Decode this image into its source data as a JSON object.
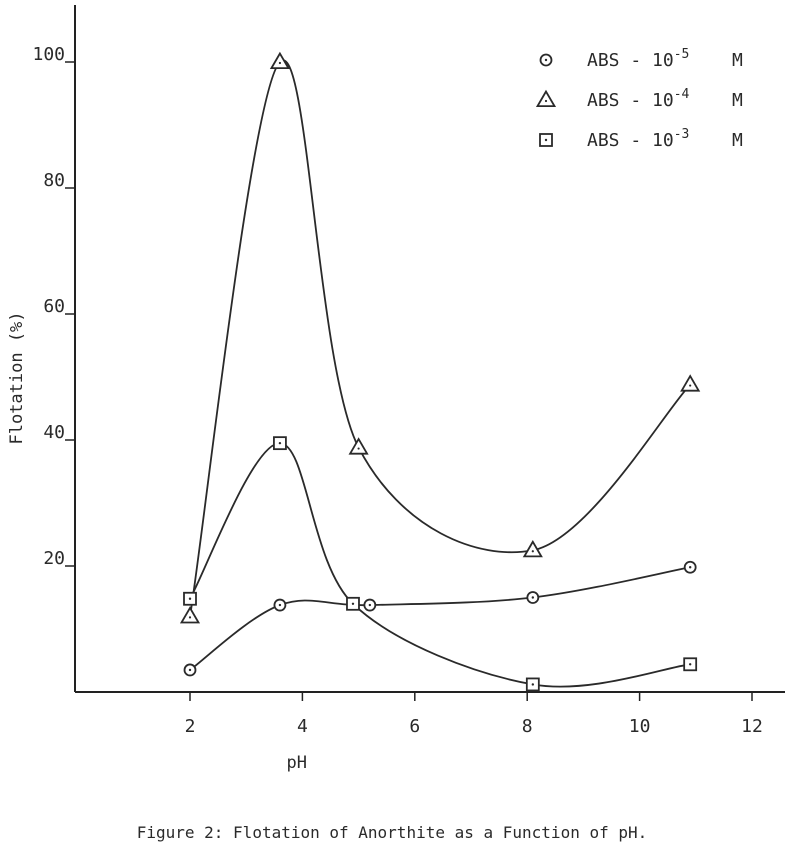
{
  "chart_data": {
    "type": "line",
    "xlabel": "pH",
    "ylabel": "Flotation (%)",
    "xlim": [
      0,
      12.5
    ],
    "ylim": [
      0,
      110
    ],
    "x_ticks": [
      2,
      4,
      6,
      8,
      10,
      12
    ],
    "y_ticks": [
      20,
      40,
      60,
      80,
      100
    ],
    "grid": false,
    "legend_position": "top-right",
    "series": [
      {
        "name": "ABS - 10⁻⁵ M",
        "legend_label": "ABS - 10",
        "legend_exp": "-5",
        "legend_unit": "M",
        "marker": "circle",
        "x": [
          2.0,
          3.6,
          5.2,
          8.1,
          10.9
        ],
        "y": [
          3.5,
          13.8,
          13.8,
          15.0,
          19.8
        ]
      },
      {
        "name": "ABS - 10⁻⁴ M",
        "legend_label": "ABS - 10",
        "legend_exp": "-4",
        "legend_unit": "M",
        "marker": "triangle",
        "x": [
          2.0,
          3.6,
          5.0,
          8.1,
          10.9
        ],
        "y": [
          12.0,
          100.0,
          38.8,
          22.5,
          48.8
        ]
      },
      {
        "name": "ABS - 10⁻³ M",
        "legend_label": "ABS - 10",
        "legend_exp": "-3",
        "legend_unit": "M",
        "marker": "square",
        "x": [
          2.0,
          3.6,
          4.9,
          8.1,
          10.9
        ],
        "y": [
          14.8,
          39.5,
          14.0,
          1.2,
          4.4
        ]
      }
    ]
  },
  "caption": "Figure 2:  Flotation of Anorthite as a Function of pH."
}
